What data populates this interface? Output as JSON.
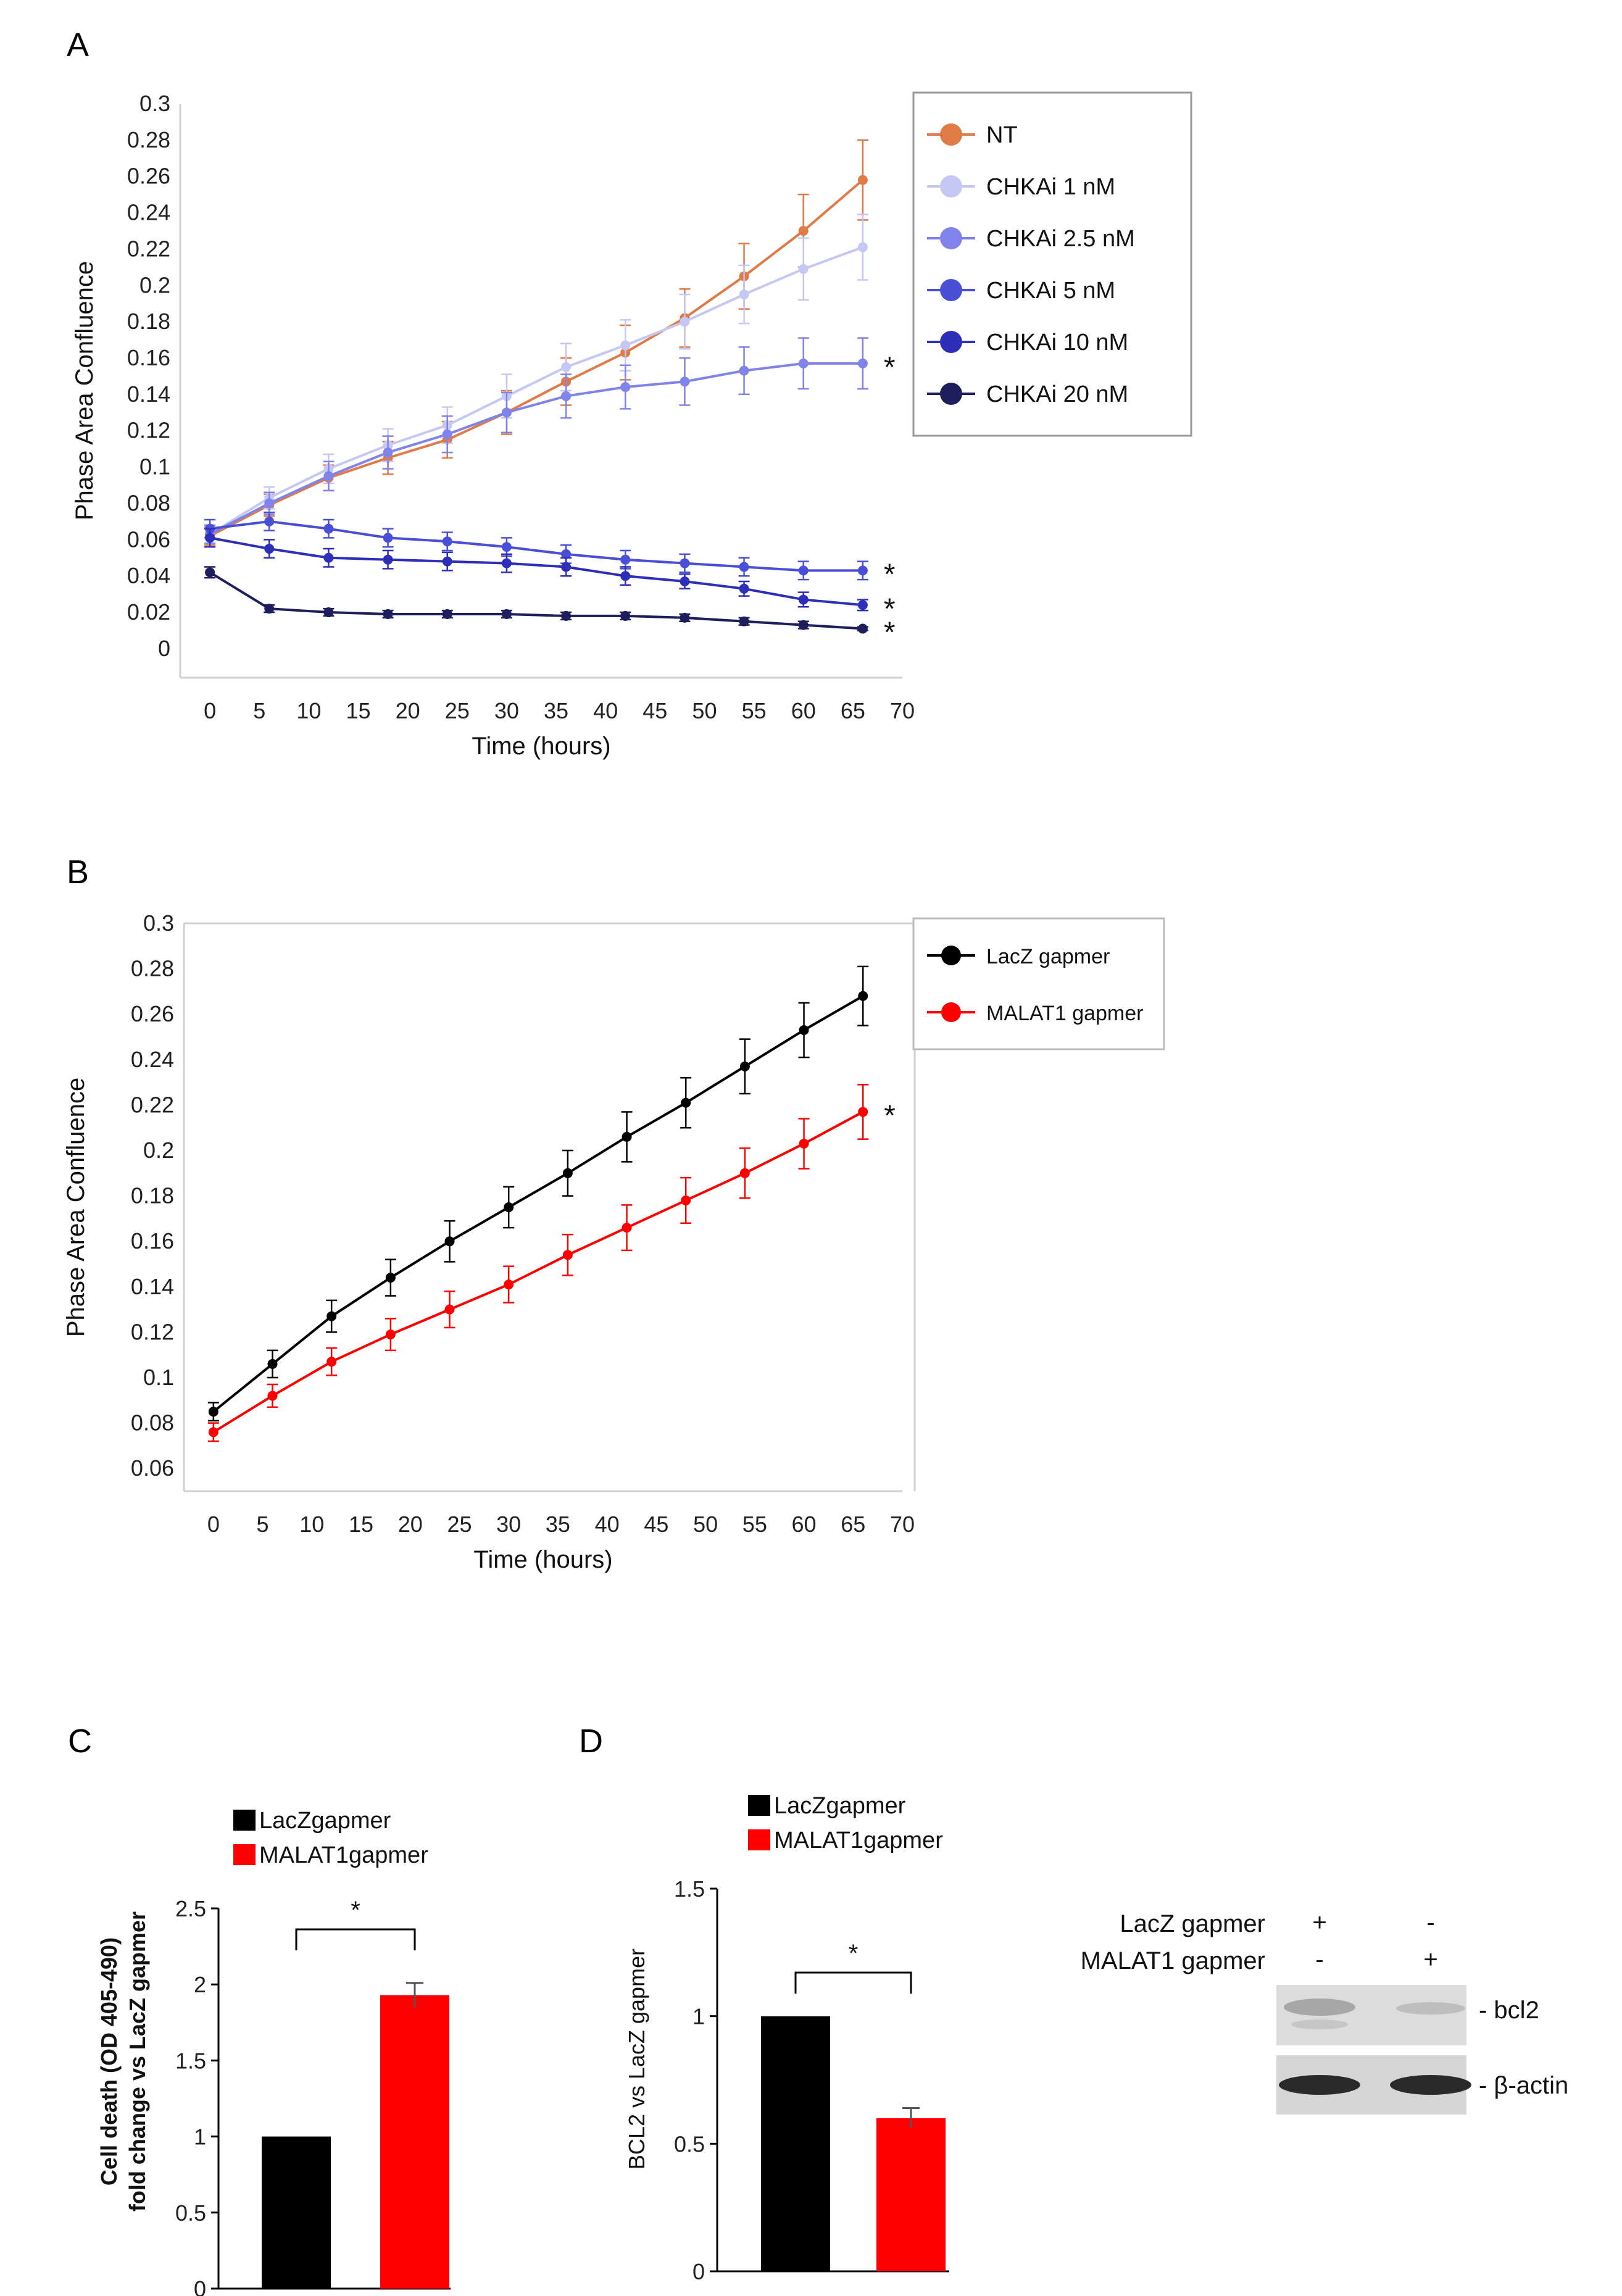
{
  "panel_letters": {
    "a": "A",
    "b": "B",
    "c": "C",
    "d": "D"
  },
  "colors": {
    "nt": "#E07B48",
    "chk1": "#C5C8F2",
    "chk25": "#7F83EA",
    "chk5": "#4A4FD8",
    "chk10": "#2E2FB8",
    "chk20": "#1E1E5C",
    "lacz": "#000000",
    "malat1": "#FF0000"
  },
  "chart_data": [
    {
      "id": "A",
      "type": "line",
      "title": "",
      "xlabel": "Time (hours)",
      "ylabel": "Phase Area Confluence",
      "xlim": [
        -3,
        70
      ],
      "ylim": [
        -0.016,
        0.3
      ],
      "xticks": [
        "0",
        "5",
        "10",
        "15",
        "20",
        "25",
        "30",
        "35",
        "40",
        "45",
        "50",
        "55",
        "60",
        "65",
        "70"
      ],
      "yticks": [
        "0.3",
        "0.28",
        "0.26",
        "0.24",
        "0.22",
        "0.2",
        "0.18",
        "0.16",
        "0.14",
        "0.12",
        "0.1",
        "0.08",
        "0.06",
        "0.04",
        "0.02",
        "0"
      ],
      "legend_position": "top-right",
      "x": [
        0,
        6,
        12,
        18,
        24,
        30,
        36,
        42,
        48,
        54,
        60,
        66
      ],
      "series": [
        {
          "name": "NT",
          "color_key": "nt",
          "values": [
            0.062,
            0.079,
            0.094,
            0.105,
            0.115,
            0.13,
            0.147,
            0.163,
            0.182,
            0.205,
            0.23,
            0.258
          ],
          "err": [
            0.005,
            0.006,
            0.007,
            0.009,
            0.01,
            0.012,
            0.013,
            0.015,
            0.016,
            0.018,
            0.02,
            0.022
          ],
          "annot": ""
        },
        {
          "name": "CHKAi 1 nM",
          "color_key": "chk1",
          "values": [
            0.063,
            0.083,
            0.099,
            0.112,
            0.123,
            0.139,
            0.155,
            0.167,
            0.18,
            0.195,
            0.209,
            0.221
          ],
          "err": [
            0.005,
            0.006,
            0.008,
            0.009,
            0.01,
            0.012,
            0.013,
            0.014,
            0.015,
            0.016,
            0.017,
            0.018
          ],
          "annot": ""
        },
        {
          "name": "CHKAi 2.5 nM",
          "color_key": "chk25",
          "values": [
            0.063,
            0.08,
            0.095,
            0.108,
            0.118,
            0.13,
            0.139,
            0.144,
            0.147,
            0.153,
            0.157,
            0.157
          ],
          "err": [
            0.005,
            0.006,
            0.008,
            0.009,
            0.01,
            0.011,
            0.012,
            0.012,
            0.013,
            0.013,
            0.014,
            0.014
          ],
          "annot": "*"
        },
        {
          "name": "CHKAi 5 nM",
          "color_key": "chk5",
          "values": [
            0.066,
            0.07,
            0.066,
            0.061,
            0.059,
            0.056,
            0.052,
            0.049,
            0.047,
            0.045,
            0.043,
            0.043
          ],
          "err": [
            0.005,
            0.005,
            0.005,
            0.005,
            0.005,
            0.005,
            0.005,
            0.005,
            0.005,
            0.005,
            0.005,
            0.005
          ],
          "annot": "*"
        },
        {
          "name": "CHKAi 10 nM",
          "color_key": "chk10",
          "values": [
            0.061,
            0.055,
            0.05,
            0.049,
            0.048,
            0.047,
            0.045,
            0.04,
            0.037,
            0.033,
            0.027,
            0.024
          ],
          "err": [
            0.005,
            0.005,
            0.005,
            0.005,
            0.005,
            0.005,
            0.005,
            0.005,
            0.004,
            0.004,
            0.004,
            0.003
          ],
          "annot": "*"
        },
        {
          "name": "CHKAi 20 nM",
          "color_key": "chk20",
          "values": [
            0.042,
            0.022,
            0.02,
            0.019,
            0.019,
            0.019,
            0.018,
            0.018,
            0.017,
            0.015,
            0.013,
            0.011
          ],
          "err": [
            0.003,
            0.002,
            0.002,
            0.002,
            0.002,
            0.002,
            0.002,
            0.002,
            0.002,
            0.002,
            0.002,
            0.001
          ],
          "annot": "*"
        }
      ]
    },
    {
      "id": "B",
      "type": "line",
      "title": "",
      "xlabel": "Time (hours)",
      "ylabel": "Phase Area Confluence",
      "xlim": [
        -3,
        70
      ],
      "ylim": [
        0.05,
        0.3
      ],
      "xticks": [
        "0",
        "5",
        "10",
        "15",
        "20",
        "25",
        "30",
        "35",
        "40",
        "45",
        "50",
        "55",
        "60",
        "65",
        "70"
      ],
      "yticks": [
        "0.3",
        "0.28",
        "0.26",
        "0.24",
        "0.22",
        "0.2",
        "0.18",
        "0.16",
        "0.14",
        "0.12",
        "0.1",
        "0.08",
        "0.06"
      ],
      "legend_position": "top-right",
      "x": [
        0,
        6,
        12,
        18,
        24,
        30,
        36,
        42,
        48,
        54,
        60,
        66
      ],
      "series": [
        {
          "name": "LacZ gapmer",
          "color_key": "lacz",
          "values": [
            0.085,
            0.106,
            0.127,
            0.144,
            0.16,
            0.175,
            0.19,
            0.206,
            0.221,
            0.237,
            0.253,
            0.268
          ],
          "err": [
            0.004,
            0.006,
            0.007,
            0.008,
            0.009,
            0.009,
            0.01,
            0.011,
            0.011,
            0.012,
            0.012,
            0.013
          ],
          "annot": ""
        },
        {
          "name": "MALAT1 gapmer",
          "color_key": "malat1",
          "values": [
            0.076,
            0.092,
            0.107,
            0.119,
            0.13,
            0.141,
            0.154,
            0.166,
            0.178,
            0.19,
            0.203,
            0.217
          ],
          "err": [
            0.004,
            0.005,
            0.006,
            0.007,
            0.008,
            0.008,
            0.009,
            0.01,
            0.01,
            0.011,
            0.011,
            0.012
          ],
          "annot": "*"
        }
      ]
    },
    {
      "id": "C",
      "type": "bar",
      "title": "",
      "xlabel": "",
      "ylabel_lines": [
        "Cell death (OD 405-490)",
        "fold change vs LacZ gapmer"
      ],
      "ylim": [
        0,
        2.5
      ],
      "yticks": [
        "0",
        "0.5",
        "1",
        "1.5",
        "2",
        "2.5"
      ],
      "categories": [
        "LacZgapmer",
        "MALAT1gapmer"
      ],
      "values": [
        1.0,
        1.93
      ],
      "err": [
        0,
        0.08
      ],
      "color_keys": [
        "lacz",
        "malat1"
      ],
      "significance": "*",
      "legend_position": "top"
    },
    {
      "id": "D",
      "type": "bar",
      "title": "",
      "xlabel": "",
      "ylabel_lines": [
        "BCL2 vs LacZ gapmer"
      ],
      "ylim": [
        0,
        1.5
      ],
      "yticks": [
        "0",
        "0.5",
        "1",
        "1.5"
      ],
      "categories": [
        "LacZgapmer",
        "MALAT1gapmer"
      ],
      "values": [
        1.0,
        0.6
      ],
      "err": [
        0,
        0.04
      ],
      "color_keys": [
        "lacz",
        "malat1"
      ],
      "significance": "*",
      "legend_position": "top"
    }
  ],
  "western_blot": {
    "row_labels": [
      "LacZ gapmer",
      "MALAT1 gapmer"
    ],
    "lane_marks": [
      [
        "+",
        "-"
      ],
      [
        "-",
        "+"
      ]
    ],
    "band_labels": [
      "- bcl2",
      "- β-actin"
    ]
  }
}
